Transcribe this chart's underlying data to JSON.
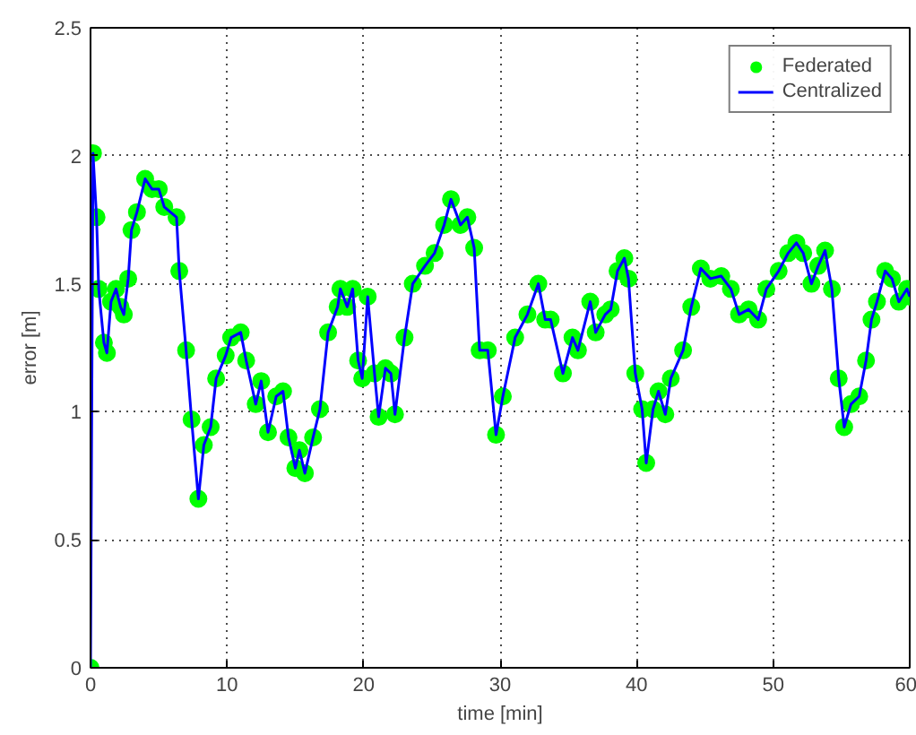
{
  "chart_data": {
    "type": "line",
    "xlabel": "time [min]",
    "ylabel": "error [m]",
    "x": [
      0,
      0.18,
      0.44,
      0.6,
      0.98,
      1.2,
      1.5,
      1.87,
      2.2,
      2.44,
      2.76,
      3.0,
      3.4,
      4.0,
      4.5,
      5.0,
      5.4,
      6.3,
      6.5,
      7.0,
      7.4,
      7.9,
      8.3,
      8.8,
      9.2,
      9.9,
      10.3,
      11.0,
      11.4,
      12.1,
      12.5,
      13.0,
      13.6,
      14.1,
      14.5,
      15.0,
      15.3,
      15.7,
      16.3,
      16.8,
      17.4,
      18.1,
      18.3,
      18.8,
      19.2,
      19.6,
      19.9,
      20.3,
      20.8,
      21.1,
      21.6,
      22.0,
      22.3,
      23.0,
      23.6,
      24.5,
      25.2,
      25.9,
      26.4,
      27.1,
      27.6,
      28.1,
      28.5,
      29.1,
      29.7,
      30.2,
      31.1,
      32.0,
      32.8,
      33.3,
      33.7,
      34.6,
      35.3,
      35.7,
      36.6,
      37.0,
      37.7,
      38.1,
      38.6,
      39.1,
      39.4,
      39.9,
      40.4,
      40.7,
      41.2,
      41.6,
      42.1,
      42.5,
      43.4,
      44.0,
      44.7,
      45.4,
      46.2,
      46.9,
      47.5,
      48.2,
      48.9,
      49.5,
      50.4,
      51.1,
      51.7,
      52.2,
      52.8,
      53.3,
      53.8,
      54.3,
      54.8,
      55.2,
      55.7,
      56.3,
      56.8,
      57.2,
      57.6,
      58.2,
      58.7,
      59.2,
      59.8,
      60
    ],
    "series": [
      {
        "name": "Federated",
        "type": "scatter",
        "marker": "circle",
        "color": "#00ff00",
        "values": [
          0,
          2.01,
          1.76,
          1.48,
          1.27,
          1.23,
          1.43,
          1.48,
          1.41,
          1.38,
          1.52,
          1.71,
          1.78,
          1.91,
          1.87,
          1.87,
          1.8,
          1.76,
          1.55,
          1.24,
          0.97,
          0.66,
          0.87,
          0.94,
          1.13,
          1.22,
          1.29,
          1.31,
          1.2,
          1.03,
          1.12,
          0.92,
          1.06,
          1.08,
          0.9,
          0.78,
          0.85,
          0.76,
          0.9,
          1.01,
          1.31,
          1.41,
          1.48,
          1.41,
          1.48,
          1.2,
          1.13,
          1.45,
          1.15,
          0.98,
          1.17,
          1.15,
          0.99,
          1.29,
          1.5,
          1.57,
          1.62,
          1.73,
          1.83,
          1.73,
          1.76,
          1.64,
          1.24,
          1.24,
          0.91,
          1.06,
          1.29,
          1.38,
          1.5,
          1.36,
          1.36,
          1.15,
          1.29,
          1.24,
          1.43,
          1.31,
          1.38,
          1.4,
          1.55,
          1.6,
          1.52,
          1.15,
          1.01,
          0.8,
          1.01,
          1.08,
          0.99,
          1.13,
          1.24,
          1.41,
          1.56,
          1.52,
          1.53,
          1.48,
          1.38,
          1.4,
          1.36,
          1.48,
          1.55,
          1.62,
          1.66,
          1.62,
          1.5,
          1.57,
          1.63,
          1.48,
          1.13,
          0.94,
          1.03,
          1.06,
          1.2,
          1.36,
          1.43,
          1.55,
          1.52,
          1.43,
          1.48,
          1.45
        ]
      },
      {
        "name": "Centralized",
        "color": "#0000ff",
        "values": [
          0,
          2.01,
          1.76,
          1.48,
          1.27,
          1.23,
          1.43,
          1.48,
          1.41,
          1.38,
          1.52,
          1.71,
          1.78,
          1.91,
          1.87,
          1.87,
          1.8,
          1.76,
          1.55,
          1.24,
          0.97,
          0.66,
          0.87,
          0.94,
          1.13,
          1.22,
          1.29,
          1.31,
          1.2,
          1.03,
          1.12,
          0.92,
          1.06,
          1.08,
          0.9,
          0.78,
          0.85,
          0.76,
          0.9,
          1.01,
          1.31,
          1.41,
          1.48,
          1.41,
          1.48,
          1.2,
          1.13,
          1.45,
          1.15,
          0.98,
          1.17,
          1.15,
          0.99,
          1.29,
          1.5,
          1.57,
          1.62,
          1.73,
          1.83,
          1.73,
          1.76,
          1.64,
          1.24,
          1.24,
          0.91,
          1.06,
          1.29,
          1.38,
          1.5,
          1.36,
          1.36,
          1.15,
          1.29,
          1.24,
          1.43,
          1.31,
          1.38,
          1.4,
          1.55,
          1.6,
          1.52,
          1.15,
          1.01,
          0.8,
          1.01,
          1.08,
          0.99,
          1.13,
          1.24,
          1.41,
          1.56,
          1.52,
          1.53,
          1.48,
          1.38,
          1.4,
          1.36,
          1.48,
          1.55,
          1.62,
          1.66,
          1.62,
          1.5,
          1.57,
          1.63,
          1.48,
          1.13,
          0.94,
          1.03,
          1.06,
          1.2,
          1.36,
          1.43,
          1.55,
          1.52,
          1.43,
          1.48,
          1.45
        ]
      }
    ],
    "xlim": [
      0,
      60
    ],
    "xticks": [
      0,
      10,
      20,
      30,
      40,
      50,
      60
    ],
    "ylim": [
      0,
      2.5
    ],
    "yticks": [
      0,
      0.5,
      1,
      1.5,
      2,
      2.5
    ],
    "grid": true,
    "legend": "top right",
    "line_style": "solid"
  }
}
